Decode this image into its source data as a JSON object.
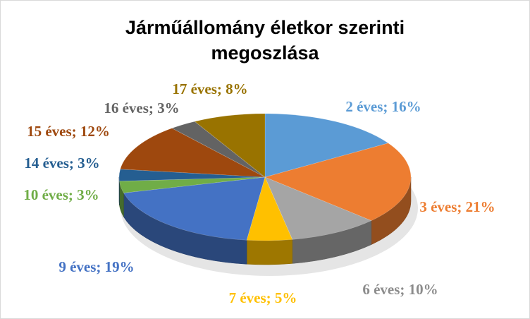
{
  "chart_data": {
    "type": "pie",
    "title": [
      "Járműállomány életkor szerinti",
      "megoszlása"
    ],
    "categories": [
      "2 éves",
      "3 éves",
      "6 éves",
      "7 éves",
      "9 éves",
      "10 éves",
      "14 éves",
      "15 éves",
      "16 éves",
      "17 éves"
    ],
    "values": [
      16,
      21,
      10,
      5,
      19,
      3,
      3,
      12,
      3,
      8
    ],
    "labels": [
      "2 éves; 16%",
      "3 éves; 21%",
      "6 éves; 10%",
      "7 éves; 5%",
      "9 éves; 19%",
      "10 éves; 3%",
      "14 éves; 3%",
      "15 éves; 12%",
      "16 éves; 3%",
      "17 éves; 8%"
    ],
    "colors": [
      "#5B9BD5",
      "#ED7D31",
      "#A5A5A5",
      "#FFC000",
      "#4472C4",
      "#70AD47",
      "#255E91",
      "#9E480E",
      "#636363",
      "#997300"
    ],
    "style": "3d-pie",
    "legend": "none"
  }
}
